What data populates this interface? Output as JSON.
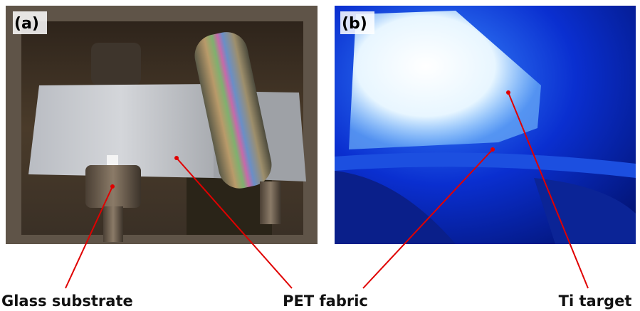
{
  "panels": [
    {
      "label": "(a)"
    },
    {
      "label": "(b)"
    }
  ],
  "annotations": [
    {
      "label": "Glass substrate"
    },
    {
      "label": "PET fabric"
    },
    {
      "label": "Ti target"
    }
  ]
}
